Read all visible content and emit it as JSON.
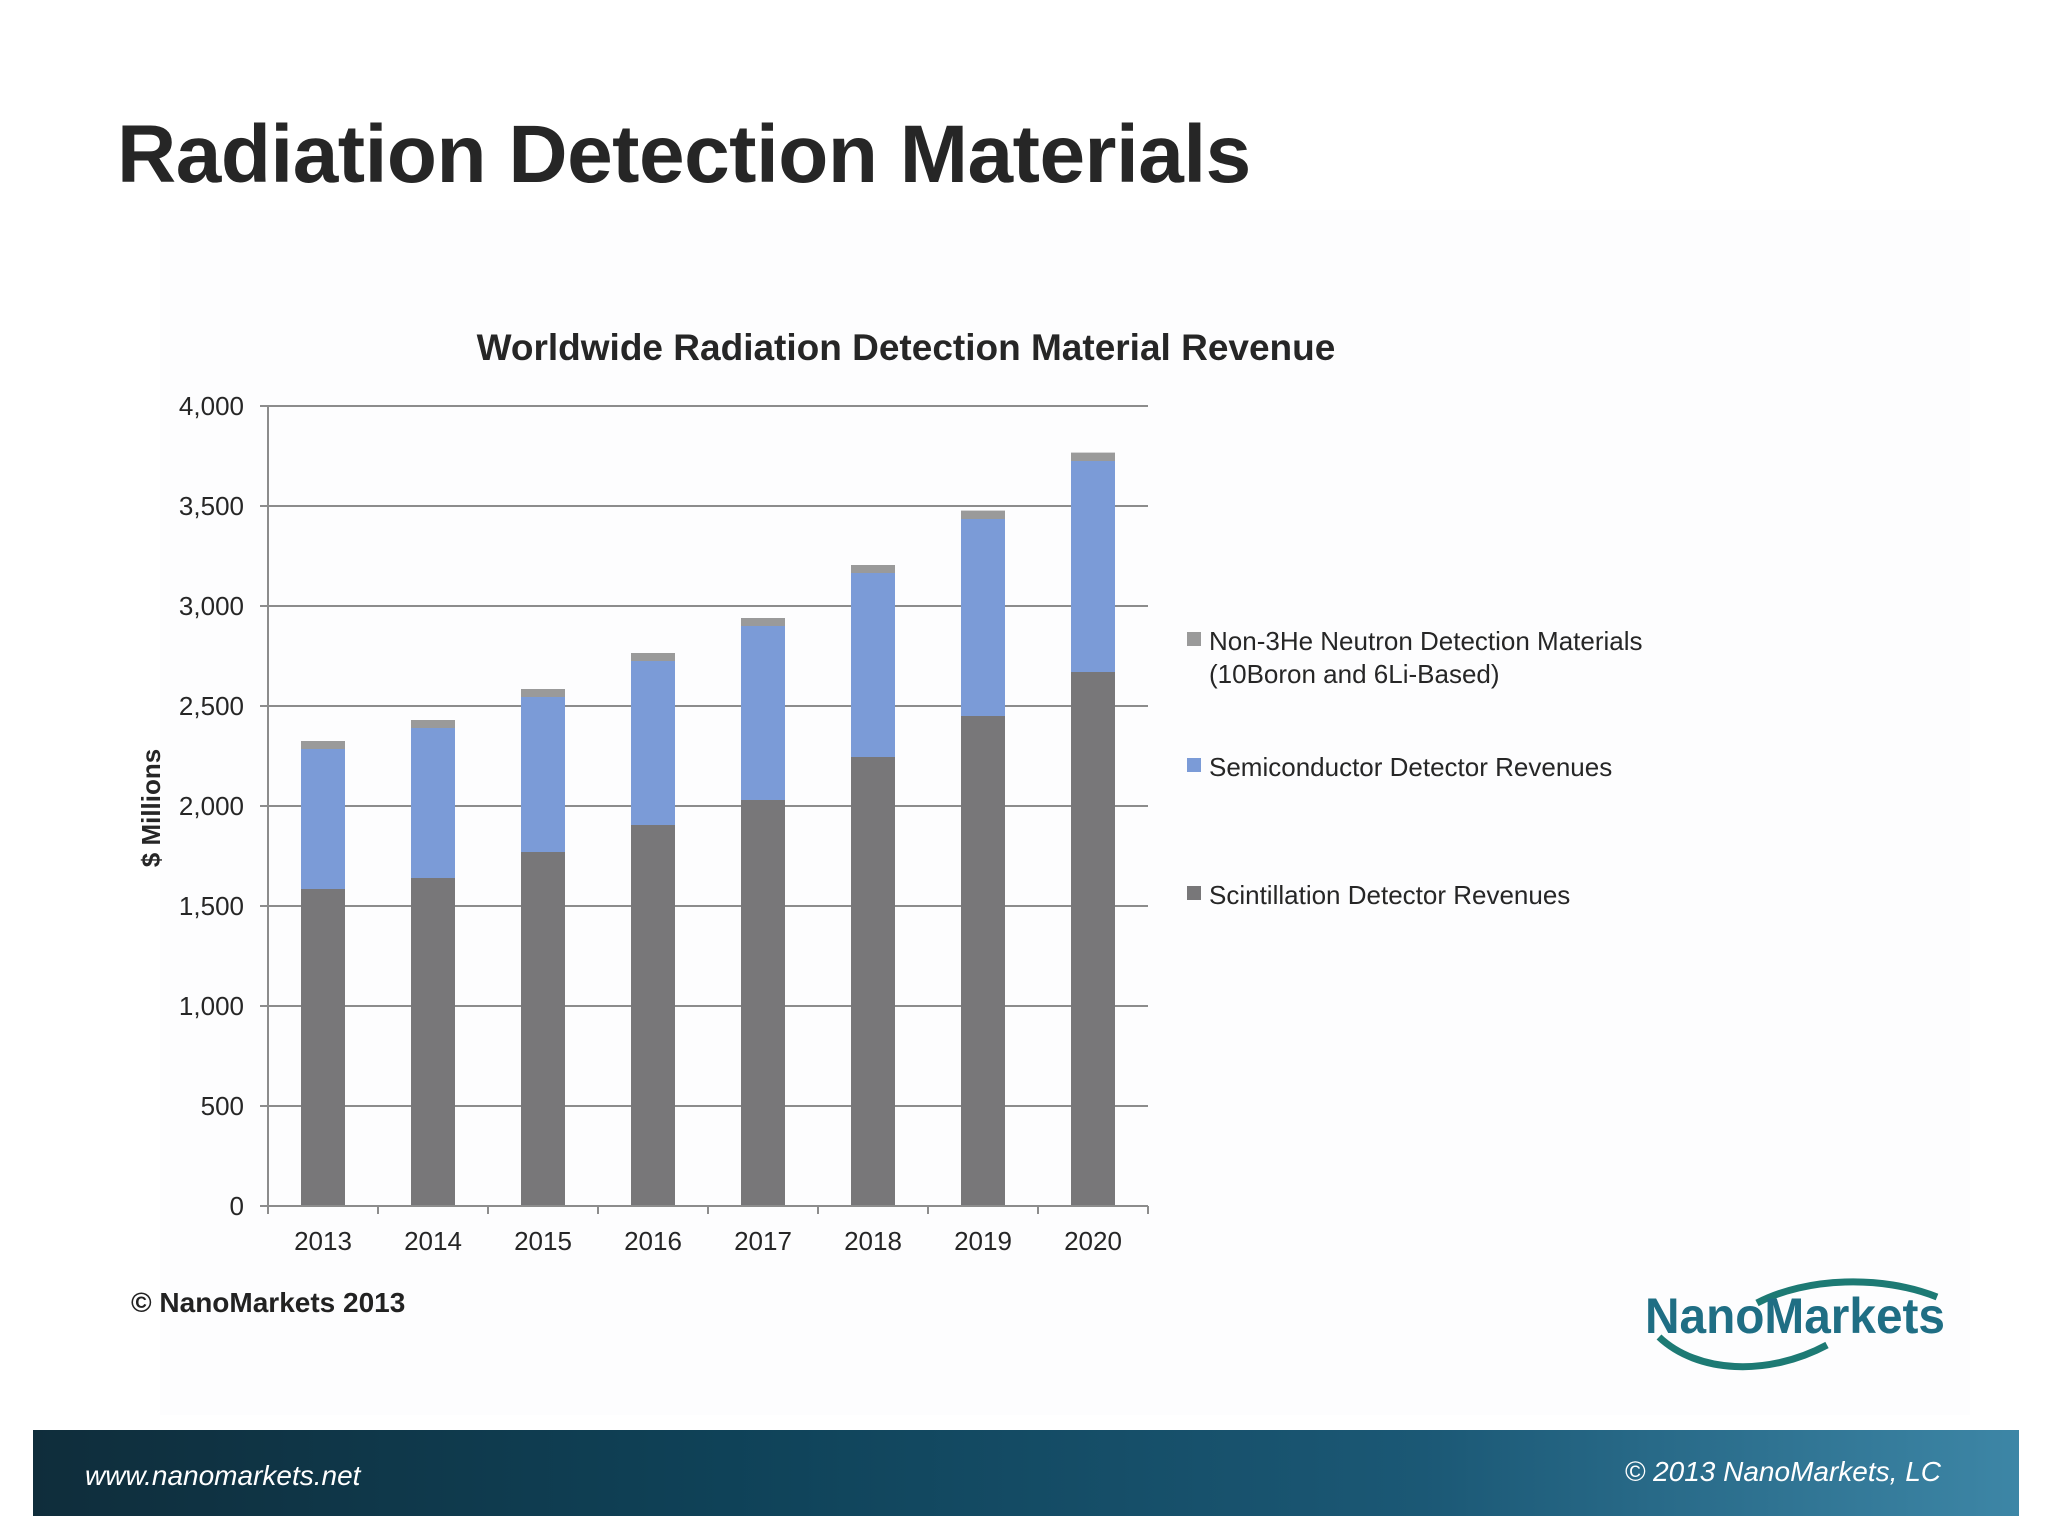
{
  "slide": {
    "title": "Radiation Detection Materials",
    "copyright_note": "© NanoMarkets 2013",
    "logo_text": "NanoMarkets",
    "footer_url": "www.nanomarkets.net",
    "footer_copyright": "© 2013 NanoMarkets, LC"
  },
  "chart_data": {
    "type": "bar",
    "stacked": true,
    "title": "Worldwide Radiation Detection Material Revenue",
    "xlabel": "",
    "ylabel": "$ Millions",
    "ylim": [
      0,
      4000
    ],
    "yticks": [
      0,
      500,
      1000,
      1500,
      2000,
      2500,
      3000,
      3500,
      4000
    ],
    "ytick_labels": [
      "0",
      "500",
      "1,000",
      "1,500",
      "2,000",
      "2,500",
      "3,000",
      "3,500",
      "4,000"
    ],
    "grid": true,
    "legend_position": "right",
    "categories": [
      "2013",
      "2014",
      "2015",
      "2016",
      "2017",
      "2018",
      "2019",
      "2020"
    ],
    "series": [
      {
        "name": "Scintillation Detector Revenues",
        "color": "#787779",
        "values": [
          1585,
          1640,
          1770,
          1905,
          2030,
          2245,
          2450,
          2670
        ]
      },
      {
        "name": "Semiconductor Detector Revenues",
        "color": "#7b9bd7",
        "values": [
          700,
          750,
          775,
          820,
          870,
          920,
          985,
          1055
        ]
      },
      {
        "name": "Non-3He Neutron Detection Materials (10Boron and 6Li-Based)",
        "name_lines": [
          "Non-3He Neutron Detection Materials",
          "(10Boron and 6Li-Based)"
        ],
        "color": "#9a9a9a",
        "values": [
          40,
          40,
          40,
          40,
          40,
          40,
          42,
          42
        ]
      }
    ]
  }
}
